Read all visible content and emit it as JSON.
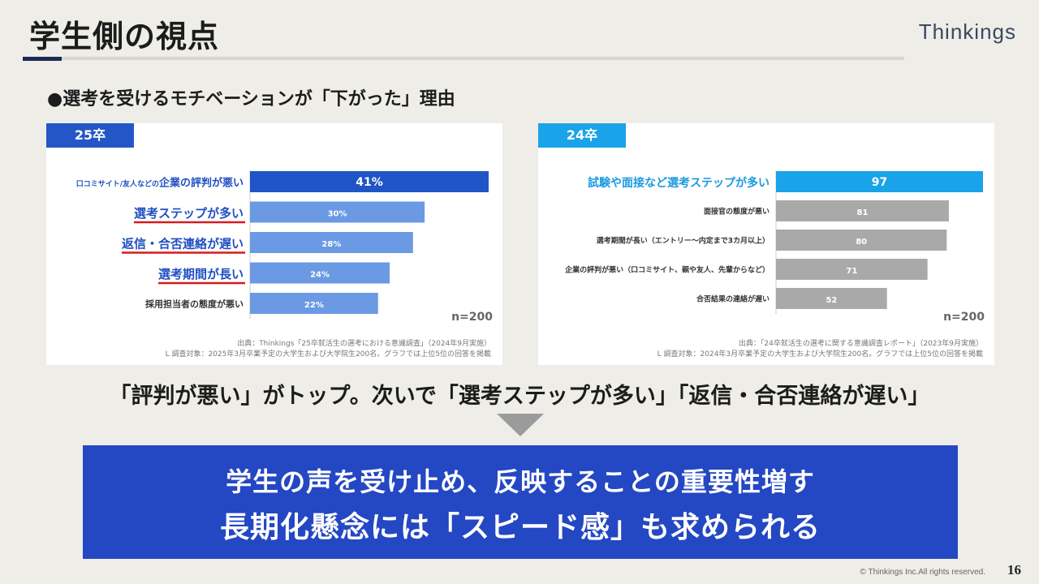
{
  "header": {
    "title": "学生側の視点",
    "brand": "Thinkings",
    "accent_color": "#1b2a52"
  },
  "subheading": "●選考を受けるモチベーションが「下がった」理由",
  "chart_data": [
    {
      "type": "bar",
      "orientation": "horizontal",
      "tag": "25卒",
      "tag_color": "#2456c7",
      "categories": [
        {
          "prefix": "口コミサイト/友人などの",
          "main": "企業の評判が悪い"
        },
        {
          "prefix": "",
          "main": "選考ステップが多い"
        },
        {
          "prefix": "",
          "main": "返信・合否連絡が遅い"
        },
        {
          "prefix": "",
          "main": "選考期間が長い"
        },
        {
          "prefix": "",
          "main": "採用担当者の態度が悪い"
        }
      ],
      "values": [
        41,
        30,
        28,
        24,
        22
      ],
      "value_labels": [
        "41%",
        "30%",
        "28%",
        "24%",
        "22%"
      ],
      "highlight_colors": [
        "#1f55c6",
        "#6b99e4",
        "#6b99e4",
        "#6b99e4",
        "#6b99e4"
      ],
      "label_colors": [
        "#1f4fc2",
        "#1f4fc2",
        "#1f4fc2",
        "#1f4fc2",
        "#333333"
      ],
      "underlined": [
        false,
        true,
        true,
        true,
        false
      ],
      "underline_color": "#d81a1a",
      "n_label": "n=200",
      "source_line1": "出典：Thinkings「25卒就活生の選考における意識調査」（2024年9月実施）",
      "source_line2": "L 調査対象：2025年3月卒業予定の大学生および大学院生200名。グラフでは上位5位の回答を掲載",
      "xlim": [
        0,
        41
      ]
    },
    {
      "type": "bar",
      "orientation": "horizontal",
      "tag": "24卒",
      "tag_color": "#1aa3e8",
      "categories": [
        {
          "prefix": "",
          "main": "試験や面接など選考ステップが多い"
        },
        {
          "prefix": "",
          "main": "面接官の態度が悪い"
        },
        {
          "prefix": "",
          "main": "選考期間が長い（エントリー〜内定まで3カ月以上）"
        },
        {
          "prefix": "",
          "main": "企業の評判が悪い（口コミサイト、親や友人、先輩からなど）"
        },
        {
          "prefix": "",
          "main": "合否結果の連絡が遅い"
        }
      ],
      "values": [
        97,
        81,
        80,
        71,
        52
      ],
      "value_labels": [
        "97",
        "81",
        "80",
        "71",
        "52"
      ],
      "highlight_colors": [
        "#1aa3e8",
        "#a9a9a9",
        "#a9a9a9",
        "#a9a9a9",
        "#a9a9a9"
      ],
      "label_colors": [
        "#1a9ae0",
        "#333333",
        "#333333",
        "#333333",
        "#333333"
      ],
      "underlined": [
        false,
        false,
        false,
        false,
        false
      ],
      "underline_color": "#d81a1a",
      "n_label": "n=200",
      "source_line1": "出典：「24卒就活生の選考に関する意識調査レポート」（2023年9月実施）",
      "source_line2": "L 調査対象：2024年3月卒業予定の大学生および大学院生200名。グラフでは上位5位の回答を掲載",
      "xlim": [
        0,
        97
      ]
    }
  ],
  "statement": "「評判が悪い」がトップ。次いで「選考ステップが多い」「返信・合否連絡が遅い」",
  "banner": {
    "line1": "学生の声を受け止め、反映することの重要性増す",
    "line2": "長期化懸念には「スピード感」も求められる",
    "color": "#2447c3"
  },
  "footer": {
    "copyright": "© Thinkings Inc.All rights reserved.",
    "page": "16"
  }
}
